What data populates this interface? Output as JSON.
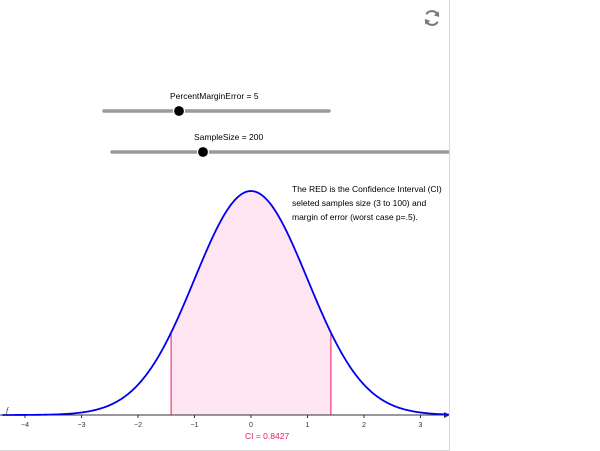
{
  "sliders": [
    {
      "id": "percent-margin-error",
      "label": "PercentMarginError = 5",
      "value": 5
    },
    {
      "id": "sample-size",
      "label": "SampleSize = 200",
      "value": 200
    }
  ],
  "info_text": "The RED is the Confidence Interval (CI)\nseleted samples size (3 to 100) and\nmargin of error (worst case p=.5).",
  "ci_label": "CI = 0.8427",
  "function_label": "f",
  "colors": {
    "curve": "#0000ee",
    "shade_fill": "#ffe4f1",
    "shade_edge": "#e8186b",
    "ci_text": "#e8186b",
    "slider_track": "#9a9a9a",
    "slider_knob": "#000000"
  },
  "icons": {
    "reset": "reset-arrows-icon"
  },
  "chart_data": {
    "type": "area",
    "curve": "normal_density",
    "mean": 0,
    "sd": 1,
    "shaded_interval": [
      -1.4142,
      1.4142
    ],
    "shaded_area": 0.8427,
    "xlim": [
      -4.4,
      3.5
    ],
    "x_ticks": [
      -4,
      -3,
      -2,
      -1,
      0,
      1,
      2,
      3
    ],
    "x_tick_labels": [
      "−4",
      "−3",
      "−2",
      "−1",
      "0",
      "1",
      "2",
      "3"
    ],
    "grid": false
  }
}
